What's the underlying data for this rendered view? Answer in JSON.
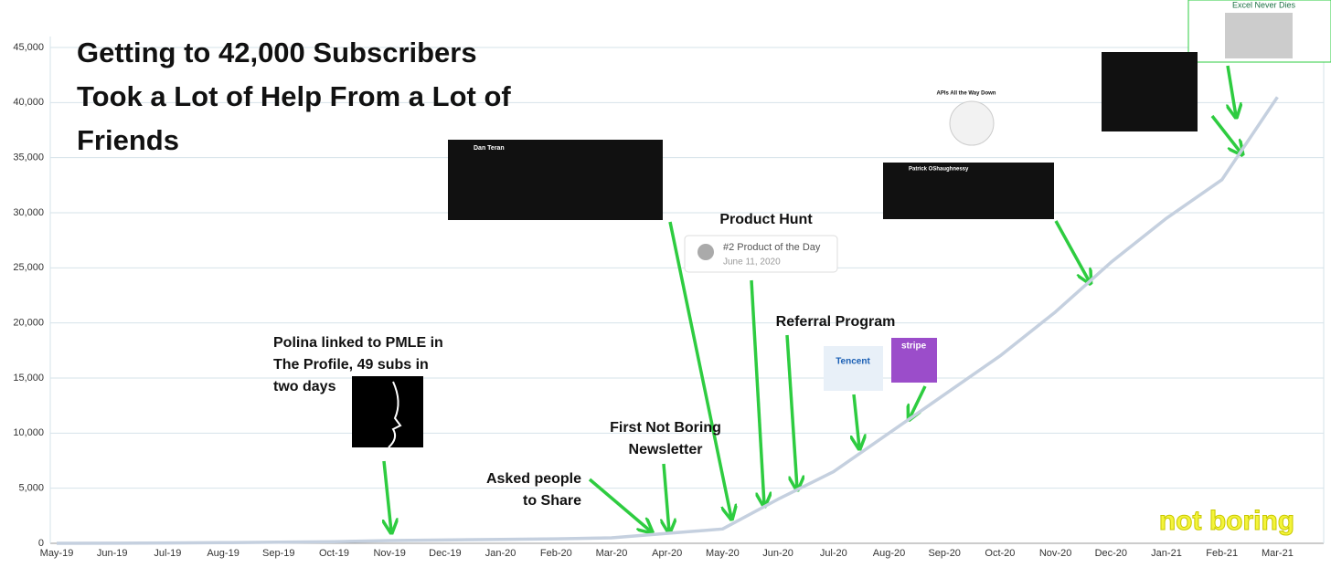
{
  "chart_data": {
    "type": "line",
    "title": [
      "Getting to 42,000 Subscribers",
      "Took a Lot of Help From a Lot of",
      "Friends"
    ],
    "categories": [
      "May-19",
      "Jun-19",
      "Jul-19",
      "Aug-19",
      "Sep-19",
      "Oct-19",
      "Nov-19",
      "Dec-19",
      "Jan-20",
      "Feb-20",
      "Mar-20",
      "Apr-20",
      "May-20",
      "Jun-20",
      "Jul-20",
      "Aug-20",
      "Sep-20",
      "Oct-20",
      "Nov-20",
      "Dec-20",
      "Jan-21",
      "Feb-21",
      "Mar-21"
    ],
    "series": [
      {
        "name": "Subscribers",
        "color": "#c5d0df",
        "values": [
          0,
          10,
          30,
          60,
          100,
          150,
          250,
          300,
          350,
          400,
          500,
          900,
          1300,
          4000,
          6500,
          10000,
          13500,
          17000,
          21000,
          25500,
          29500,
          33000,
          40500
        ]
      }
    ],
    "ylim": [
      0,
      45000
    ],
    "yticks": [
      0,
      {
        "value": 5000,
        "label": "5,000"
      },
      {
        "value": 10000,
        "label": "10,000"
      },
      {
        "value": 15000,
        "label": "15,000"
      },
      {
        "value": 20000,
        "label": "20,000"
      },
      {
        "value": 25000,
        "label": "25,000"
      },
      {
        "value": 30000,
        "label": "30,000"
      },
      {
        "value": 35000,
        "label": "35,000"
      },
      {
        "value": 40000,
        "label": "40,000"
      },
      {
        "value": 45000,
        "label": "45,000"
      }
    ],
    "grid": true,
    "annotations": [
      [
        "Polina linked  to PMLE in",
        "The Profile, 49 subs in",
        "two days"
      ],
      [
        "Asked people",
        "to Share"
      ],
      [
        "First Not Boring",
        "Newsletter"
      ],
      [
        "Product Hunt"
      ],
      [
        "Referral Program"
      ]
    ],
    "product_hunt": {
      "rank": "#2 Product of the Day",
      "date": "June 11, 2020"
    },
    "tweets": [
      "Dan Teran",
      "Patrick OShaughnessy"
    ],
    "badges": [
      "APIs All the Way Down",
      "Excel Never Dies",
      "stripe",
      "Tencent"
    ],
    "logo": "not boring"
  }
}
